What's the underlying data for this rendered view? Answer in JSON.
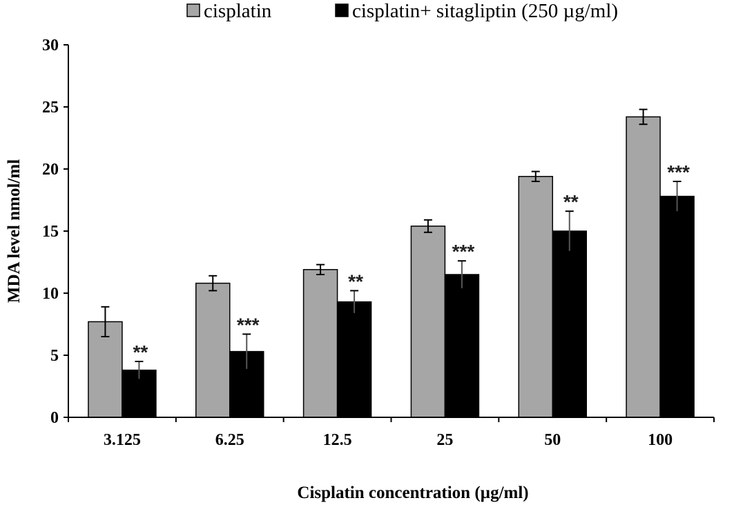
{
  "chart_data": {
    "type": "bar",
    "categories": [
      "3.125",
      "6.25",
      "12.5",
      "25",
      "50",
      "100"
    ],
    "series": [
      {
        "name": "cisplatin",
        "color": "#a6a6a6",
        "values": [
          7.7,
          10.8,
          11.9,
          15.4,
          19.4,
          24.2
        ],
        "errors": [
          1.2,
          0.6,
          0.4,
          0.5,
          0.4,
          0.6
        ],
        "significance": [
          "",
          "",
          "",
          "",
          "",
          ""
        ]
      },
      {
        "name": "cisplatin+ sitagliptin (250 µg/ml)",
        "color": "#000000",
        "values": [
          3.8,
          5.3,
          9.3,
          11.5,
          15.0,
          17.8
        ],
        "errors": [
          0.7,
          1.4,
          0.9,
          1.1,
          1.6,
          1.2
        ],
        "significance": [
          "**",
          "***",
          "**",
          "***",
          "**",
          "***"
        ]
      }
    ],
    "xlabel": "Cisplatin concentration (µg/ml)",
    "ylabel": "MDA level nmol/ml",
    "ylim": [
      0,
      30
    ],
    "yticks": [
      "0",
      "5",
      "10",
      "15",
      "20",
      "25",
      "30"
    ],
    "grid": false,
    "legend_position": "top"
  }
}
